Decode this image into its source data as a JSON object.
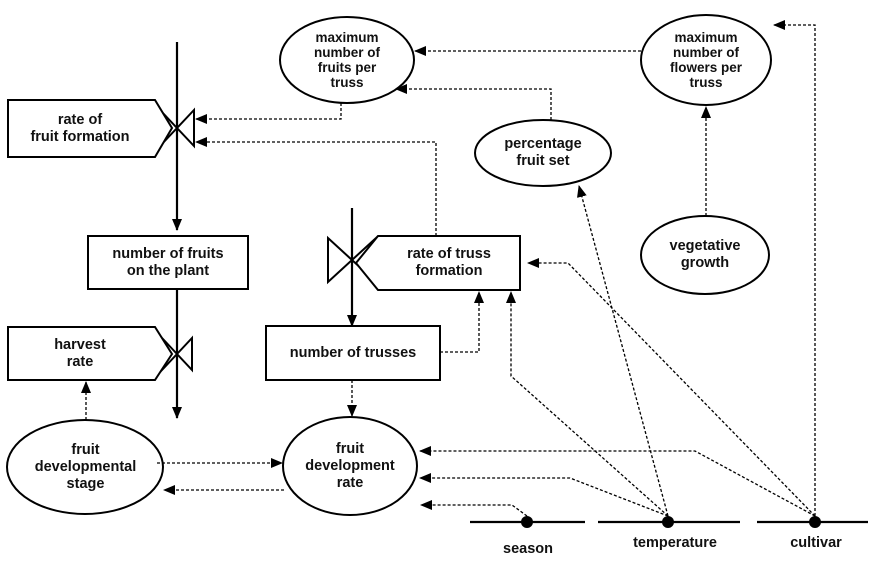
{
  "diagram": {
    "ellipses": {
      "max_fruits_per_truss": "maximum\nnumber of\nfruits per\ntruss",
      "max_flowers_per_truss": "maximum\nnumber of\nflowers per\ntruss",
      "percentage_fruit_set": "percentage\nfruit set",
      "vegetative_growth": "vegetative\ngrowth",
      "fruit_developmental_stage": "fruit\ndevelopmental\nstage",
      "fruit_development_rate": "fruit\ndevelopment\nrate"
    },
    "rates": {
      "rate_of_fruit_formation": "rate of\nfruit formation",
      "rate_of_truss_formation": "rate of truss\nformation",
      "harvest_rate": "harvest\nrate"
    },
    "states": {
      "number_of_fruits": "number of fruits\non the plant",
      "number_of_trusses": "number of trusses"
    },
    "drivers": {
      "season": "season",
      "temperature": "temperature",
      "cultivar": "cultivar"
    }
  }
}
